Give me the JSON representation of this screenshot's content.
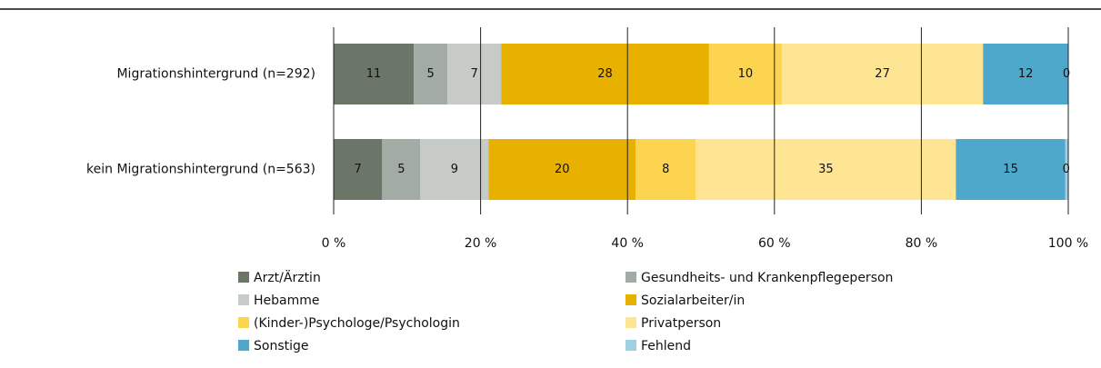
{
  "chart_data": {
    "type": "stacked_barh",
    "categories": [
      "Migrationshintergrund (n=292)",
      "kein Migrationshintergrund (n=563)"
    ],
    "series": [
      {
        "name": "Arzt/Ärztin",
        "color": "#6b7568",
        "values": [
          10.9,
          6.6
        ],
        "value_labels": [
          "11",
          "7"
        ]
      },
      {
        "name": "Gesundheits- und Krankenpflegeperson",
        "color": "#a3aba5",
        "values": [
          4.6,
          5.2
        ],
        "value_labels": [
          "5",
          "5"
        ]
      },
      {
        "name": "Hebamme",
        "color": "#c7cbc8",
        "values": [
          7.3,
          9.3
        ],
        "value_labels": [
          "7",
          "9"
        ]
      },
      {
        "name": "Sozialarbeiter/in",
        "color": "#e8b100",
        "values": [
          28.3,
          20.0
        ],
        "value_labels": [
          "28",
          "20"
        ]
      },
      {
        "name": "(Kinder-)Psychologe/Psychologin",
        "color": "#fdd44f",
        "values": [
          9.9,
          8.2
        ],
        "value_labels": [
          "10",
          "8"
        ]
      },
      {
        "name": "Privatperson",
        "color": "#fde593",
        "values": [
          27.4,
          35.4
        ],
        "value_labels": [
          "27",
          "35"
        ]
      },
      {
        "name": "Sonstige",
        "color": "#4ea8cc",
        "values": [
          11.6,
          14.9
        ],
        "value_labels": [
          "12",
          "15"
        ]
      },
      {
        "name": "Fehlend",
        "color": "#9fcfe3",
        "values": [
          0,
          0.4
        ],
        "value_labels": [
          "0",
          "0"
        ]
      }
    ],
    "xlim": [
      0,
      100
    ],
    "xticks": [
      {
        "value": 0,
        "label": "0 %"
      },
      {
        "value": 20,
        "label": "20 %"
      },
      {
        "value": 40,
        "label": "40 %"
      },
      {
        "value": 60,
        "label": "60 %"
      },
      {
        "value": 80,
        "label": "80 %"
      },
      {
        "value": 100,
        "label": "100 %"
      }
    ],
    "grid": true
  }
}
